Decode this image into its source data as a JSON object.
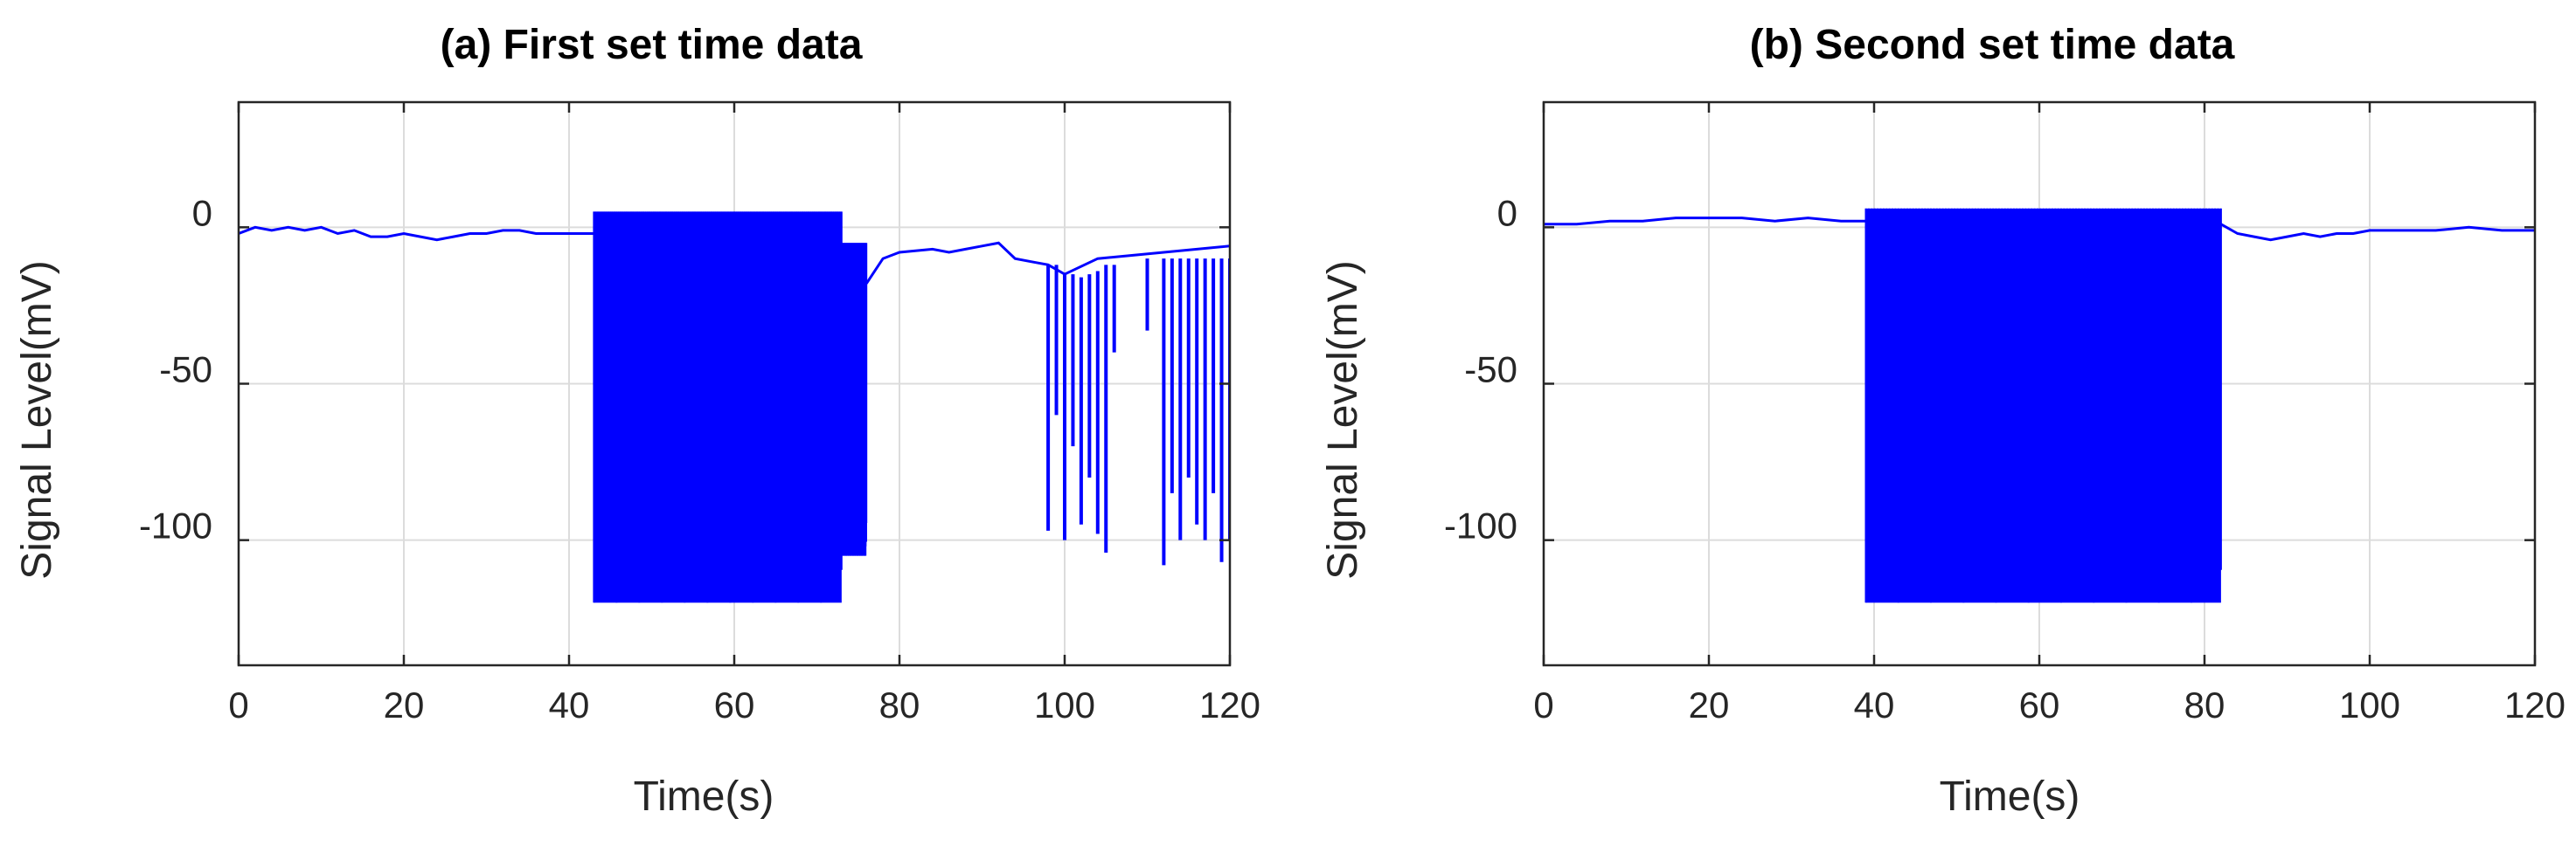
{
  "chart_data": [
    {
      "type": "line",
      "title": "(a) First set time data",
      "xlabel": "Time(s)",
      "ylabel": "Signal Level(mV)",
      "xlim": [
        0,
        120
      ],
      "ylim": [
        -140,
        40
      ],
      "xticks": [
        0,
        20,
        40,
        60,
        80,
        100,
        120
      ],
      "yticks": [
        -100,
        -50,
        0
      ],
      "grid": true,
      "color": "#0000ff",
      "series": [
        {
          "points": [
            [
              0,
              -2
            ],
            [
              2,
              0
            ],
            [
              4,
              -1
            ],
            [
              6,
              0
            ],
            [
              8,
              -1
            ],
            [
              10,
              0
            ],
            [
              12,
              -2
            ],
            [
              14,
              -1
            ],
            [
              16,
              -3
            ],
            [
              18,
              -3
            ],
            [
              20,
              -2
            ],
            [
              22,
              -3
            ],
            [
              24,
              -4
            ],
            [
              26,
              -3
            ],
            [
              28,
              -2
            ],
            [
              30,
              -2
            ],
            [
              32,
              -1
            ],
            [
              34,
              -1
            ],
            [
              36,
              -2
            ],
            [
              38,
              -2
            ],
            [
              40,
              -2
            ],
            [
              42,
              -2
            ],
            [
              43,
              -2
            ]
          ],
          "bursts": [
            {
              "x0": 43,
              "x1": 73,
              "top": 5,
              "bottom": -120
            },
            {
              "x0": 73,
              "x1": 76,
              "top": -5,
              "bottom": -105
            }
          ],
          "after": [
            [
              76,
              -18
            ],
            [
              78,
              -10
            ],
            [
              80,
              -8
            ],
            [
              84,
              -7
            ],
            [
              86,
              -8
            ],
            [
              88,
              -7
            ],
            [
              90,
              -6
            ],
            [
              92,
              -5
            ],
            [
              94,
              -10
            ],
            [
              96,
              -11
            ],
            [
              98,
              -12
            ],
            [
              100,
              -15
            ],
            [
              104,
              -10
            ],
            [
              108,
              -9
            ],
            [
              112,
              -8
            ],
            [
              120,
              -6
            ]
          ],
          "spikes": [
            [
              98,
              -12,
              -97
            ],
            [
              99,
              -12,
              -60
            ],
            [
              100,
              -15,
              -100
            ],
            [
              101,
              -15,
              -70
            ],
            [
              102,
              -16,
              -95
            ],
            [
              103,
              -15,
              -80
            ],
            [
              104,
              -14,
              -98
            ],
            [
              105,
              -12,
              -104
            ],
            [
              106,
              -12,
              -40
            ],
            [
              110,
              -10,
              -33
            ],
            [
              112,
              -10,
              -108
            ],
            [
              113,
              -10,
              -85
            ],
            [
              114,
              -10,
              -100
            ],
            [
              115,
              -10,
              -80
            ],
            [
              116,
              -10,
              -95
            ],
            [
              117,
              -10,
              -100
            ],
            [
              118,
              -10,
              -85
            ],
            [
              119,
              -10,
              -107
            ],
            [
              120,
              -10,
              -100
            ]
          ]
        }
      ]
    },
    {
      "type": "line",
      "title": "(b) Second set time data",
      "xlabel": "Time(s)",
      "ylabel": "Signal Level(mV)",
      "xlim": [
        0,
        120
      ],
      "ylim": [
        -140,
        40
      ],
      "xticks": [
        0,
        20,
        40,
        60,
        80,
        100,
        120
      ],
      "yticks": [
        -100,
        -50,
        0
      ],
      "grid": true,
      "color": "#0000ff",
      "series": [
        {
          "points": [
            [
              0,
              1
            ],
            [
              4,
              1
            ],
            [
              8,
              2
            ],
            [
              12,
              2
            ],
            [
              16,
              3
            ],
            [
              20,
              3
            ],
            [
              24,
              3
            ],
            [
              28,
              2
            ],
            [
              32,
              3
            ],
            [
              36,
              2
            ],
            [
              39,
              2
            ]
          ],
          "bursts": [
            {
              "x0": 39,
              "x1": 82,
              "top": 6,
              "bottom": -120
            }
          ],
          "after": [
            [
              82,
              1
            ],
            [
              84,
              -2
            ],
            [
              86,
              -3
            ],
            [
              88,
              -4
            ],
            [
              90,
              -3
            ],
            [
              92,
              -2
            ],
            [
              94,
              -3
            ],
            [
              96,
              -2
            ],
            [
              98,
              -2
            ],
            [
              100,
              -1
            ],
            [
              104,
              -1
            ],
            [
              108,
              -1
            ],
            [
              112,
              0
            ],
            [
              116,
              -1
            ],
            [
              120,
              -1
            ]
          ],
          "spikes": []
        }
      ]
    }
  ]
}
